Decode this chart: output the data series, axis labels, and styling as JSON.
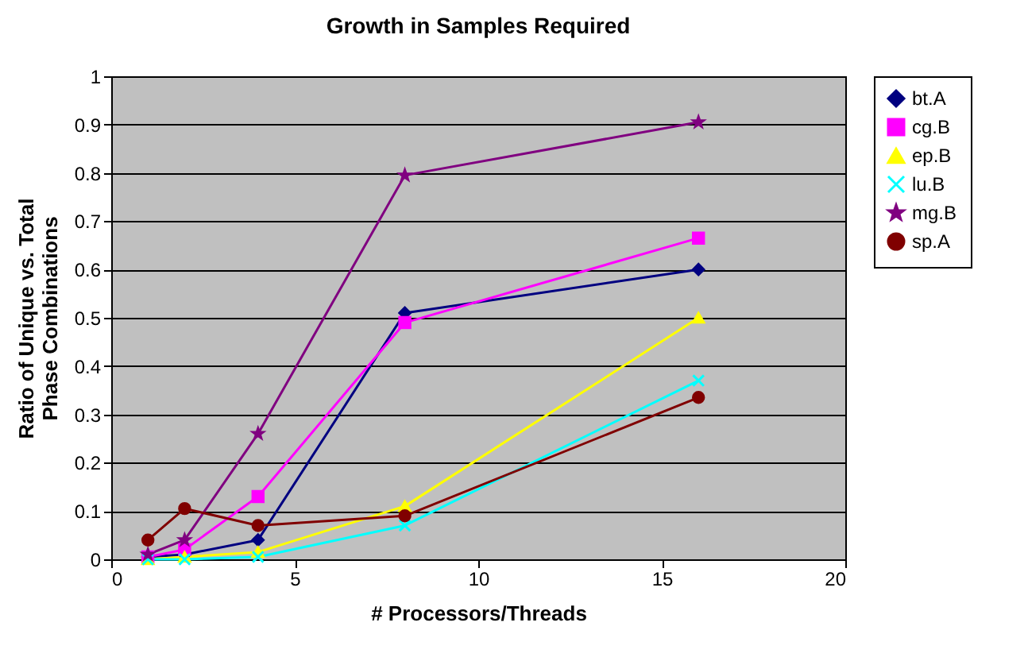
{
  "chart_data": {
    "type": "line",
    "title": "Growth in Samples Required",
    "xlabel": "# Processors/Threads",
    "ylabel": "Ratio of Unique vs. Total Phase Combinations",
    "x": [
      1,
      2,
      4,
      8,
      16
    ],
    "series": [
      {
        "name": "bt.A",
        "color": "#000080",
        "marker": "diamond",
        "values": [
          0.005,
          0.01,
          0.04,
          0.51,
          0.6
        ]
      },
      {
        "name": "cg.B",
        "color": "#ff00ff",
        "marker": "square",
        "values": [
          0.005,
          0.02,
          0.13,
          0.49,
          0.665
        ]
      },
      {
        "name": "ep.B",
        "color": "#ffff00",
        "marker": "triangle",
        "values": [
          0,
          0.005,
          0.015,
          0.11,
          0.5
        ]
      },
      {
        "name": "lu.B",
        "color": "#00ffff",
        "marker": "cross",
        "values": [
          0,
          0,
          0.005,
          0.07,
          0.37
        ]
      },
      {
        "name": "mg.B",
        "color": "#800080",
        "marker": "star",
        "values": [
          0.01,
          0.04,
          0.26,
          0.795,
          0.905
        ]
      },
      {
        "name": "sp.A",
        "color": "#800000",
        "marker": "circle",
        "values": [
          0.04,
          0.105,
          0.07,
          0.09,
          0.335
        ]
      }
    ],
    "xlim": [
      0,
      20
    ],
    "xticks": [
      0,
      5,
      10,
      15,
      20
    ],
    "ylim": [
      0,
      1
    ],
    "yticks": [
      0,
      0.1,
      0.2,
      0.3,
      0.4,
      0.5,
      0.6,
      0.7,
      0.8,
      0.9,
      1
    ],
    "grid": "y",
    "legend": "right",
    "line_style": "solid"
  }
}
